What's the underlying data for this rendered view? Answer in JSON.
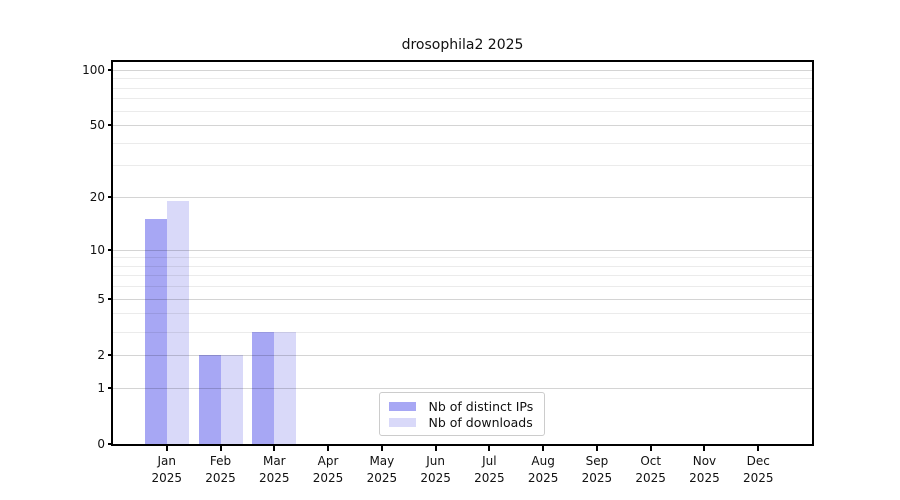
{
  "page": {
    "background": "#ffffff"
  },
  "chart_data": {
    "type": "bar",
    "title": "drosophila2 2025",
    "categories": [
      "Jan 2025",
      "Feb 2025",
      "Mar 2025",
      "Apr 2025",
      "May 2025",
      "Jun 2025",
      "Jul 2025",
      "Aug 2025",
      "Sep 2025",
      "Oct 2025",
      "Nov 2025",
      "Dec 2025"
    ],
    "series": [
      {
        "name": "Nb of distinct IPs",
        "color": "#a7a7f4",
        "values": [
          15,
          2,
          3,
          0,
          0,
          0,
          0,
          0,
          0,
          0,
          0,
          0
        ]
      },
      {
        "name": "Nb of downloads",
        "color": "#d9d9f9",
        "values": [
          19,
          2,
          3,
          0,
          0,
          0,
          0,
          0,
          0,
          0,
          0,
          0
        ]
      }
    ],
    "xlabel": "",
    "ylabel": "",
    "y_axis": {
      "scale": "log1p",
      "ticks": [
        0,
        1,
        2,
        5,
        10,
        20,
        50,
        100
      ],
      "minor_gridlines": [
        3,
        4,
        6,
        7,
        8,
        9,
        30,
        40,
        60,
        70,
        80,
        90
      ],
      "axis_top_value": 110,
      "min": 0
    },
    "grid": true,
    "legend": {
      "position": "lower center"
    },
    "colors": {
      "major_grid": "rgba(0,0,0,0.17)",
      "minor_grid": "rgba(0,0,0,0.08)",
      "spine": "#000000",
      "text": "#111111"
    }
  }
}
